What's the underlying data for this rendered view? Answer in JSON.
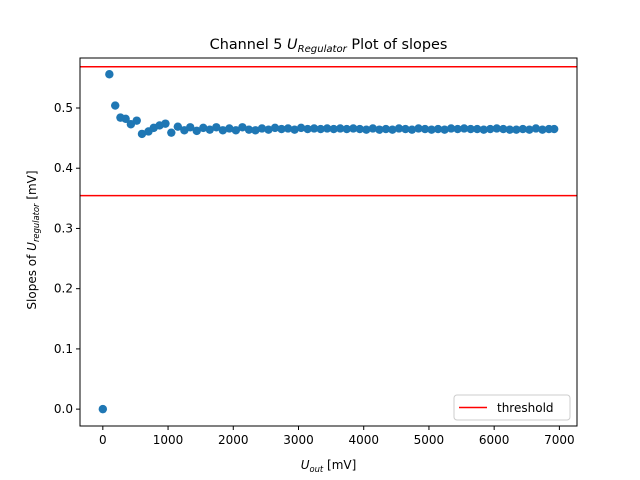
{
  "chart_data": {
    "type": "scatter",
    "title": {
      "prefix": "Channel 5 ",
      "symbol": "U",
      "symbol_sub": "Regulator",
      "suffix": " Plot of slopes"
    },
    "xlabel": {
      "symbol": "U",
      "symbol_sub": "out",
      "suffix": " [mV]"
    },
    "ylabel": {
      "prefix": "Slopes of ",
      "symbol": "U",
      "symbol_sub": "regulator",
      "suffix": " [mV]"
    },
    "xlim": [
      -350,
      7270
    ],
    "ylim": [
      -0.028,
      0.583
    ],
    "xticks": [
      0,
      1000,
      2000,
      3000,
      4000,
      5000,
      6000,
      7000
    ],
    "yticks": [
      0.0,
      0.1,
      0.2,
      0.3,
      0.4,
      0.5
    ],
    "grid": false,
    "legend": {
      "placement": "lower-right",
      "entries": [
        {
          "label": "threshold",
          "color": "#ff0000",
          "kind": "line"
        }
      ]
    },
    "thresholds": [
      0.5685,
      0.3545
    ],
    "series": [
      {
        "color": "#1f77b4",
        "x": [
          0,
          100,
          190,
          270,
          350,
          430,
          520,
          600,
          700,
          780,
          870,
          960,
          1050,
          1150,
          1250,
          1340,
          1440,
          1540,
          1640,
          1740,
          1840,
          1940,
          2040,
          2140,
          2240,
          2340,
          2440,
          2540,
          2640,
          2740,
          2840,
          2940,
          3040,
          3140,
          3240,
          3340,
          3440,
          3540,
          3640,
          3740,
          3840,
          3940,
          4040,
          4140,
          4240,
          4340,
          4440,
          4540,
          4640,
          4740,
          4840,
          4940,
          5040,
          5140,
          5240,
          5340,
          5440,
          5540,
          5640,
          5740,
          5840,
          5940,
          6040,
          6140,
          6240,
          6340,
          6440,
          6540,
          6640,
          6740,
          6840,
          6920
        ],
        "y": [
          0.0,
          0.556,
          0.504,
          0.484,
          0.482,
          0.473,
          0.479,
          0.457,
          0.461,
          0.467,
          0.471,
          0.474,
          0.459,
          0.469,
          0.463,
          0.468,
          0.462,
          0.467,
          0.464,
          0.468,
          0.463,
          0.466,
          0.463,
          0.468,
          0.464,
          0.463,
          0.466,
          0.464,
          0.467,
          0.465,
          0.466,
          0.464,
          0.467,
          0.465,
          0.466,
          0.465,
          0.466,
          0.465,
          0.466,
          0.465,
          0.466,
          0.465,
          0.464,
          0.466,
          0.464,
          0.465,
          0.464,
          0.466,
          0.465,
          0.464,
          0.466,
          0.465,
          0.464,
          0.465,
          0.464,
          0.466,
          0.465,
          0.466,
          0.465,
          0.465,
          0.464,
          0.465,
          0.466,
          0.465,
          0.464,
          0.464,
          0.465,
          0.464,
          0.466,
          0.464,
          0.465,
          0.465
        ]
      }
    ]
  }
}
